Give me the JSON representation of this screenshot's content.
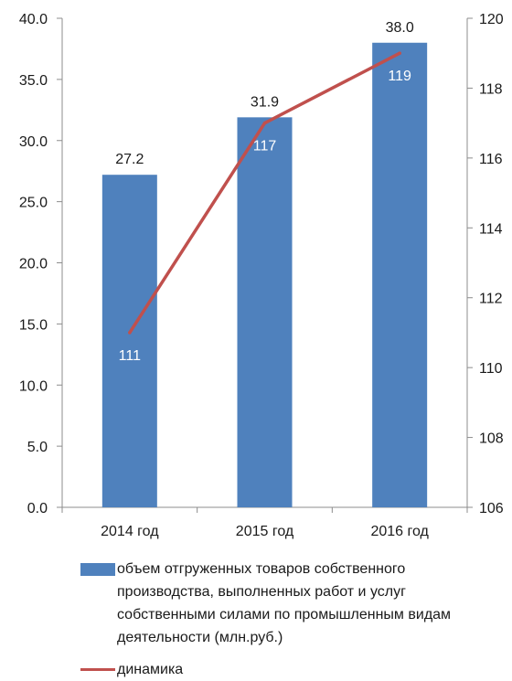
{
  "chart_data": {
    "type": "bar",
    "categories": [
      "2014 год",
      "2015 год",
      "2016 год"
    ],
    "series": [
      {
        "name": "объем отгруженных товаров собственного производства, выполненных работ и услуг собственными силами по промышленным видам деятельности (млн.руб.)",
        "type": "bar",
        "axis": "left",
        "values": [
          27.2,
          31.9,
          38.0
        ],
        "value_labels": [
          "27.2",
          "31.9",
          "38.0"
        ],
        "color": "#4f81bd"
      },
      {
        "name": "динамика",
        "type": "line",
        "axis": "right",
        "values": [
          111,
          117,
          119
        ],
        "value_labels": [
          "111",
          "117",
          "119"
        ],
        "color": "#c0504d"
      }
    ],
    "y_left": {
      "min": 0,
      "max": 40,
      "step": 5,
      "ticks": [
        "0.0",
        "5.0",
        "10.0",
        "15.0",
        "20.0",
        "25.0",
        "30.0",
        "35.0",
        "40.0"
      ]
    },
    "y_right": {
      "min": 106,
      "max": 120,
      "step": 2,
      "ticks": [
        "106",
        "108",
        "110",
        "112",
        "114",
        "116",
        "118",
        "120"
      ]
    },
    "grid": false,
    "legend_position": "bottom"
  }
}
